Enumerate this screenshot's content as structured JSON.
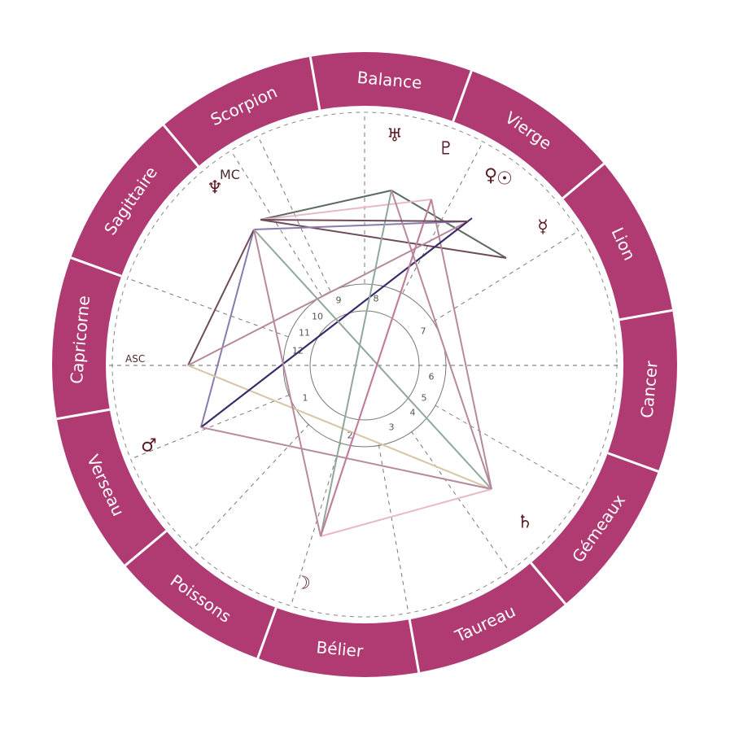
{
  "colors": {
    "ring": "#b03a72",
    "ring_divider": "#ffffff",
    "guide": "#888888",
    "planet": "#5a1a24"
  },
  "signs": [
    {
      "id": "balance",
      "label": "Balance"
    },
    {
      "id": "vierge",
      "label": "Vierge"
    },
    {
      "id": "lion",
      "label": "Lion"
    },
    {
      "id": "cancer",
      "label": "Cancer"
    },
    {
      "id": "gemeaux",
      "label": "Gémeaux"
    },
    {
      "id": "taureau",
      "label": "Taureau"
    },
    {
      "id": "belier",
      "label": "Bélier"
    },
    {
      "id": "poissons",
      "label": "Poissons"
    },
    {
      "id": "verseau",
      "label": "Verseau"
    },
    {
      "id": "capricorne",
      "label": "Capricorne"
    },
    {
      "id": "sagittaire",
      "label": "Sagittaire"
    },
    {
      "id": "scorpion",
      "label": "Scorpion"
    }
  ],
  "houses": [
    "1",
    "2",
    "3",
    "4",
    "5",
    "6",
    "7",
    "8",
    "9",
    "10",
    "11",
    "12"
  ],
  "axes": {
    "asc": "ASC",
    "mc": "MC"
  },
  "planets": [
    {
      "id": "uranus",
      "icon": "uranus-icon",
      "glyph": "♅"
    },
    {
      "id": "pluto",
      "icon": "pluto-icon",
      "glyph": "♇"
    },
    {
      "id": "venus",
      "icon": "venus-icon",
      "glyph": "♀"
    },
    {
      "id": "sun",
      "icon": "sun-icon",
      "glyph": "☉"
    },
    {
      "id": "mercury",
      "icon": "mercury-icon",
      "glyph": "☿"
    },
    {
      "id": "neptune",
      "icon": "neptune-icon",
      "glyph": "♆"
    },
    {
      "id": "mars",
      "icon": "mars-icon",
      "glyph": "♂"
    },
    {
      "id": "moon",
      "icon": "moon-icon",
      "glyph": "☽"
    },
    {
      "id": "saturn",
      "icon": "saturn-icon",
      "glyph": "♄"
    }
  ],
  "aspect_colors": [
    "#5a6a5e",
    "#e8b8c8",
    "#8a7ab0",
    "#6e4a5a",
    "#3a2a6a",
    "#8fa89a",
    "#b58a9e",
    "#d8c4a6",
    "#c47c9c"
  ]
}
